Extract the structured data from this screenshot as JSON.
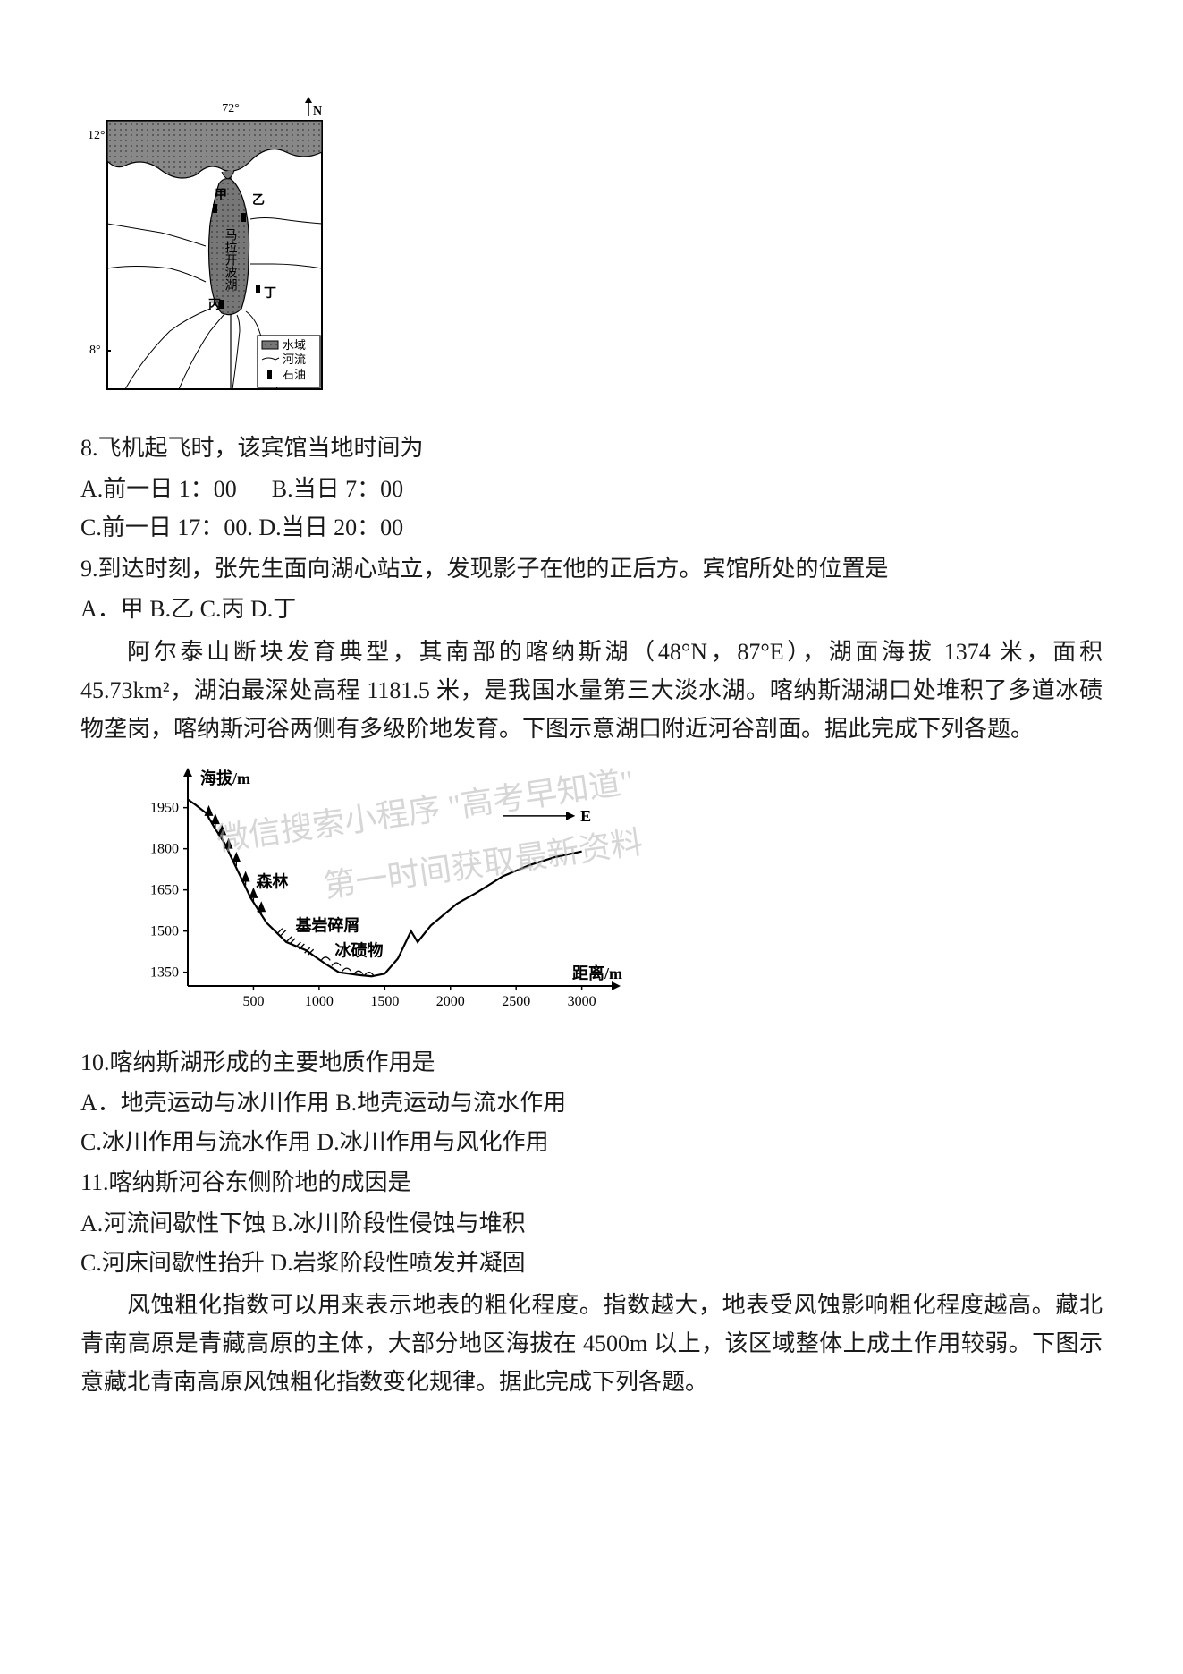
{
  "map": {
    "longitude_label": "72°",
    "lat_top": "12°",
    "lat_bottom": "8°",
    "north_arrow": "N",
    "center_lake_label": "马拉开波湖",
    "locations": [
      "甲",
      "乙",
      "丙",
      "丁"
    ],
    "legend": {
      "water": "水域",
      "river": "河流",
      "oil": "石油"
    },
    "colors": {
      "border": "#000000",
      "water_fill": "#8a8a8a",
      "land": "#ffffff",
      "hatch": "#555555"
    }
  },
  "q8": {
    "stem": "8.飞机起飞时，该宾馆当地时间为",
    "optA": "A.前一日 1：00",
    "optB": "B.当日 7：00",
    "optC": "C.前一日 17：00. ",
    "optD": "D.当日 20：00"
  },
  "q9": {
    "stem": "9.到达时刻，张先生面向湖心站立，发现影子在他的正后方。宾馆所处的位置是",
    "opts": "A．甲 B.乙 C.丙 D.丁"
  },
  "passage1": {
    "text": "阿尔泰山断块发育典型，其南部的喀纳斯湖（48°N，87°E），湖面海拔 1374 米，面积 45.73km²，湖泊最深处高程 1181.5 米，是我国水量第三大淡水湖。喀纳斯湖湖口处堆积了多道冰碛物垄岗，喀纳斯河谷两侧有多级阶地发育。下图示意湖口附近河谷剖面。据此完成下列各题。"
  },
  "chart": {
    "type": "line",
    "y_axis_label": "海拔/m",
    "x_axis_label": "距离/m",
    "y_ticks": [
      "1350",
      "1500",
      "1650",
      "1800",
      "1950"
    ],
    "x_ticks": [
      "500",
      "1000",
      "1500",
      "2000",
      "2500",
      "3000"
    ],
    "annotations": {
      "forest": "森林",
      "bedrock": "基岩碎屑",
      "moraine": "冰碛物",
      "east": "E"
    },
    "profile_points": [
      [
        0,
        1980
      ],
      [
        60,
        1960
      ],
      [
        140,
        1930
      ],
      [
        200,
        1880
      ],
      [
        280,
        1820
      ],
      [
        380,
        1720
      ],
      [
        480,
        1620
      ],
      [
        600,
        1530
      ],
      [
        750,
        1460
      ],
      [
        900,
        1430
      ],
      [
        1050,
        1380
      ],
      [
        1150,
        1350
      ],
      [
        1300,
        1340
      ],
      [
        1400,
        1335
      ],
      [
        1500,
        1345
      ],
      [
        1600,
        1400
      ],
      [
        1700,
        1500
      ],
      [
        1750,
        1460
      ],
      [
        1850,
        1520
      ],
      [
        1950,
        1560
      ],
      [
        2050,
        1600
      ],
      [
        2200,
        1640
      ],
      [
        2400,
        1700
      ],
      [
        2600,
        1740
      ],
      [
        2800,
        1770
      ],
      [
        3000,
        1790
      ]
    ],
    "tree_positions": [
      [
        160,
        1920
      ],
      [
        210,
        1890
      ],
      [
        260,
        1850
      ],
      [
        310,
        1800
      ],
      [
        370,
        1750
      ],
      [
        440,
        1680
      ],
      [
        500,
        1620
      ],
      [
        560,
        1570
      ]
    ],
    "bedrock_hatch": [
      [
        700,
        1500
      ],
      [
        770,
        1470
      ],
      [
        840,
        1450
      ],
      [
        910,
        1430
      ]
    ],
    "moraine_marks": [
      [
        1050,
        1400
      ],
      [
        1130,
        1380
      ],
      [
        1210,
        1360
      ],
      [
        1300,
        1350
      ],
      [
        1380,
        1345
      ]
    ],
    "colors": {
      "line": "#000000",
      "axis": "#000000",
      "tree": "#000000",
      "text": "#000000"
    },
    "y_range": [
      1300,
      2050
    ],
    "x_range": [
      0,
      3200
    ]
  },
  "q10": {
    "stem": "10.喀纳斯湖形成的主要地质作用是",
    "line1": "A．地壳运动与冰川作用 B.地壳运动与流水作用",
    "line2": "C.冰川作用与流水作用 D.冰川作用与风化作用"
  },
  "q11": {
    "stem": "11.喀纳斯河谷东侧阶地的成因是",
    "line1": "A.河流间歇性下蚀 B.冰川阶段性侵蚀与堆积",
    "line2": "C.河床间歇性抬升 D.岩浆阶段性喷发并凝固"
  },
  "passage2": {
    "text": "风蚀粗化指数可以用来表示地表的粗化程度。指数越大，地表受风蚀影响粗化程度越高。藏北青南高原是青藏高原的主体，大部分地区海拔在 4500m 以上，该区域整体上成土作用较弱。下图示意藏北青南高原风蚀粗化指数变化规律。据此完成下列各题。"
  },
  "watermarks": {
    "wm1": "微信搜索小程序  \"高考早知道\"",
    "wm2": "第一时间获取最新资料"
  }
}
